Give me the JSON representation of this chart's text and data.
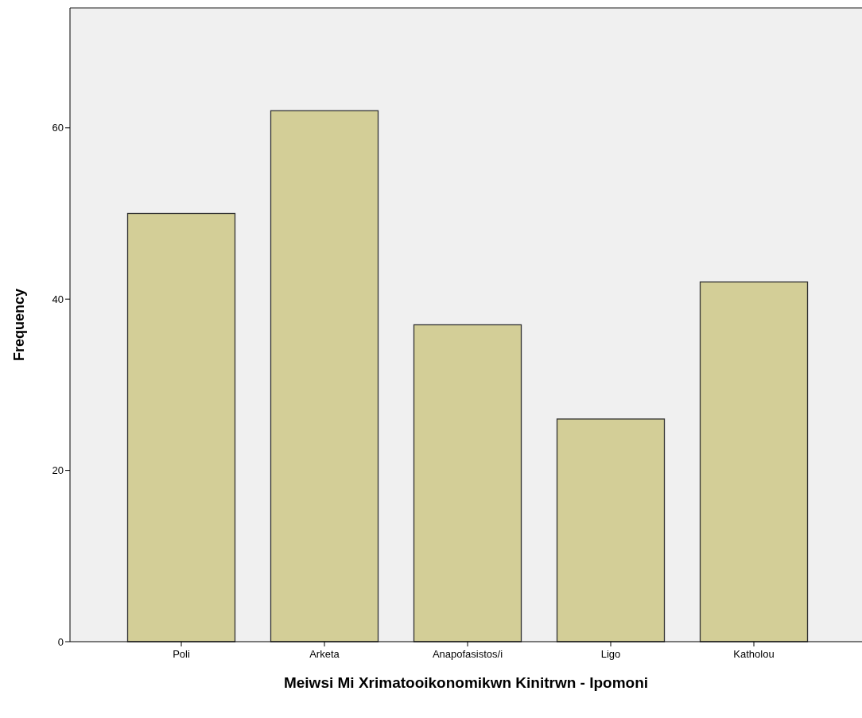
{
  "chart_data": {
    "type": "bar",
    "xlabel": "Meiwsi Mi Xrimatooikonomikwn Kinitrwn - Ipomoni",
    "ylabel": "Frequency",
    "categories": [
      "Poli",
      "Arketa",
      "Anapofasistos/i",
      "Ligo",
      "Katholou"
    ],
    "values": [
      50,
      62,
      37,
      26,
      42
    ],
    "color": "#d3ce97",
    "ylim": [
      0,
      74
    ],
    "yticks": [
      0,
      20,
      40,
      60
    ],
    "grid": false
  }
}
